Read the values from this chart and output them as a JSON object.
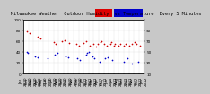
{
  "title_text": "Milwaukee Weather  Outdoor Humidity  vs Temperature  Every 5 Minutes",
  "background_color": "#c8c8c8",
  "plot_bg": "#ffffff",
  "red_color": "#cc0000",
  "blue_color": "#0000cc",
  "title_bar_red": "#dd0000",
  "title_bar_blue": "#0000cc",
  "scatter_red": [
    [
      0.03,
      0.78
    ],
    [
      0.05,
      0.75
    ],
    [
      0.12,
      0.68
    ],
    [
      0.14,
      0.65
    ],
    [
      0.25,
      0.58
    ],
    [
      0.27,
      0.55
    ],
    [
      0.32,
      0.6
    ],
    [
      0.34,
      0.62
    ],
    [
      0.38,
      0.57
    ],
    [
      0.44,
      0.55
    ],
    [
      0.46,
      0.52
    ],
    [
      0.5,
      0.57
    ],
    [
      0.52,
      0.6
    ],
    [
      0.55,
      0.52
    ],
    [
      0.58,
      0.55
    ],
    [
      0.6,
      0.5
    ],
    [
      0.62,
      0.55
    ],
    [
      0.64,
      0.58
    ],
    [
      0.65,
      0.6
    ],
    [
      0.67,
      0.55
    ],
    [
      0.69,
      0.52
    ],
    [
      0.72,
      0.55
    ],
    [
      0.73,
      0.58
    ],
    [
      0.75,
      0.52
    ],
    [
      0.76,
      0.55
    ],
    [
      0.79,
      0.52
    ],
    [
      0.8,
      0.55
    ],
    [
      0.83,
      0.52
    ],
    [
      0.85,
      0.55
    ],
    [
      0.88,
      0.52
    ],
    [
      0.9,
      0.55
    ],
    [
      0.92,
      0.58
    ],
    [
      0.94,
      0.55
    ],
    [
      0.97,
      0.52
    ]
  ],
  "scatter_blue": [
    [
      0.03,
      0.4
    ],
    [
      0.04,
      0.38
    ],
    [
      0.1,
      0.32
    ],
    [
      0.12,
      0.3
    ],
    [
      0.2,
      0.28
    ],
    [
      0.26,
      0.35
    ],
    [
      0.28,
      0.38
    ],
    [
      0.35,
      0.32
    ],
    [
      0.37,
      0.3
    ],
    [
      0.45,
      0.28
    ],
    [
      0.47,
      0.25
    ],
    [
      0.52,
      0.35
    ],
    [
      0.53,
      0.38
    ],
    [
      0.54,
      0.4
    ],
    [
      0.57,
      0.32
    ],
    [
      0.59,
      0.28
    ],
    [
      0.63,
      0.22
    ],
    [
      0.68,
      0.28
    ],
    [
      0.7,
      0.3
    ],
    [
      0.74,
      0.25
    ],
    [
      0.83,
      0.22
    ],
    [
      0.86,
      0.28
    ],
    [
      0.9,
      0.18
    ],
    [
      0.95,
      0.22
    ]
  ],
  "xlim": [
    0,
    1
  ],
  "ylim": [
    0,
    1
  ],
  "yticks": [
    0.0,
    0.2,
    0.4,
    0.6,
    0.8,
    1.0
  ],
  "ytick_labels_left": [
    "0",
    "20",
    "40",
    "60",
    "80",
    "100"
  ],
  "ytick_labels_right": [
    "10",
    "30",
    "50",
    "70",
    "90",
    ""
  ],
  "xtick_count": 24,
  "grid_color": "#aaaaaa",
  "dot_size": 1.5,
  "tick_font_size": 3.0,
  "title_font_size": 3.8
}
